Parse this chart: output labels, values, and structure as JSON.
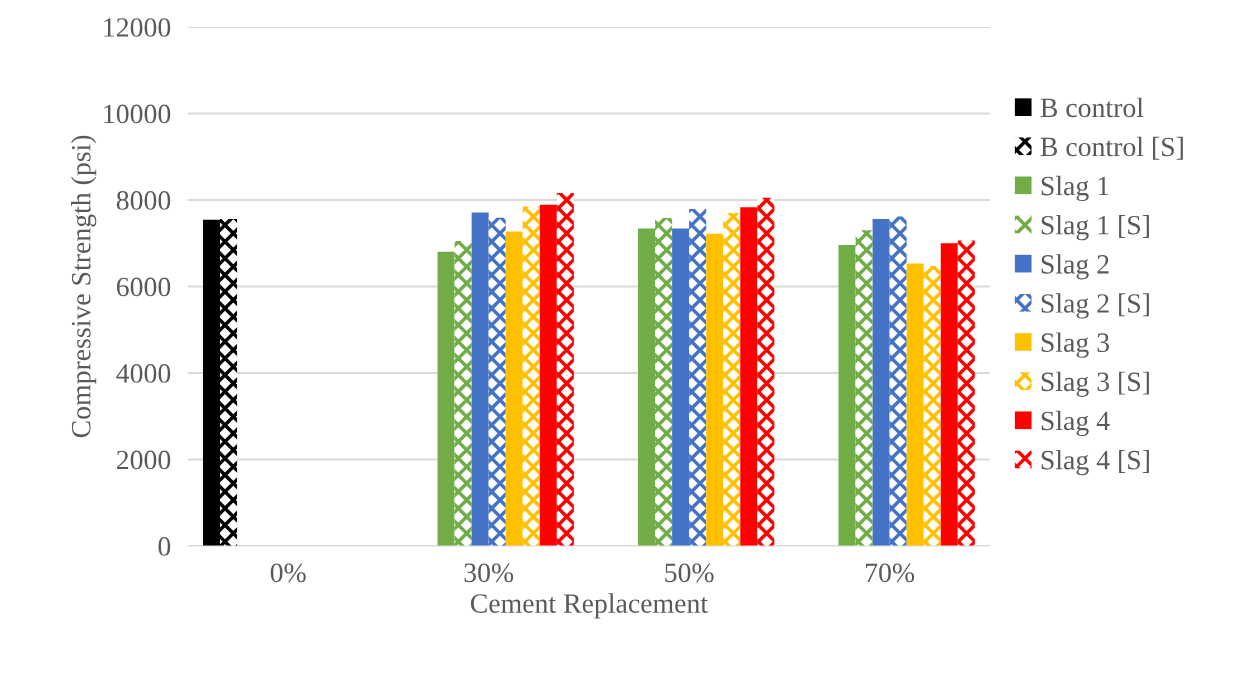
{
  "chart_data": {
    "type": "bar",
    "xlabel": "Cement Replacement",
    "ylabel": "Compressive Strength (psi)",
    "categories": [
      "0%",
      "30%",
      "50%",
      "70%"
    ],
    "series": [
      {
        "name": "B control",
        "color": "#000000",
        "values": [
          7540,
          null,
          null,
          null
        ]
      },
      {
        "name": "B control [S]",
        "color": "#000000",
        "values": [
          7560,
          null,
          null,
          null
        ]
      },
      {
        "name": "Slag 1",
        "color": "#70ad47",
        "values": [
          null,
          6800,
          7340,
          6960
        ]
      },
      {
        "name": "Slag 1 [S]",
        "color": "#70ad47",
        "values": [
          null,
          7050,
          7580,
          7300
        ]
      },
      {
        "name": "Slag 2",
        "color": "#4472c4",
        "values": [
          null,
          7710,
          7340,
          7560
        ]
      },
      {
        "name": "Slag 2 [S]",
        "color": "#4472c4",
        "values": [
          null,
          7590,
          7790,
          7620
        ]
      },
      {
        "name": "Slag 3",
        "color": "#ffc000",
        "values": [
          null,
          7270,
          7220,
          6530
        ]
      },
      {
        "name": "Slag 3 [S]",
        "color": "#ffc000",
        "values": [
          null,
          7850,
          7700,
          6470
        ]
      },
      {
        "name": "Slag 4",
        "color": "#ff0000",
        "values": [
          null,
          7890,
          7830,
          7000
        ]
      },
      {
        "name": "Slag 4 [S]",
        "color": "#ff0000",
        "values": [
          null,
          8160,
          8050,
          7060
        ]
      }
    ],
    "ylim": [
      0,
      12000
    ],
    "yticks": [
      0,
      2000,
      4000,
      6000,
      8000,
      10000,
      12000
    ],
    "grid": "y",
    "legend": "right"
  }
}
